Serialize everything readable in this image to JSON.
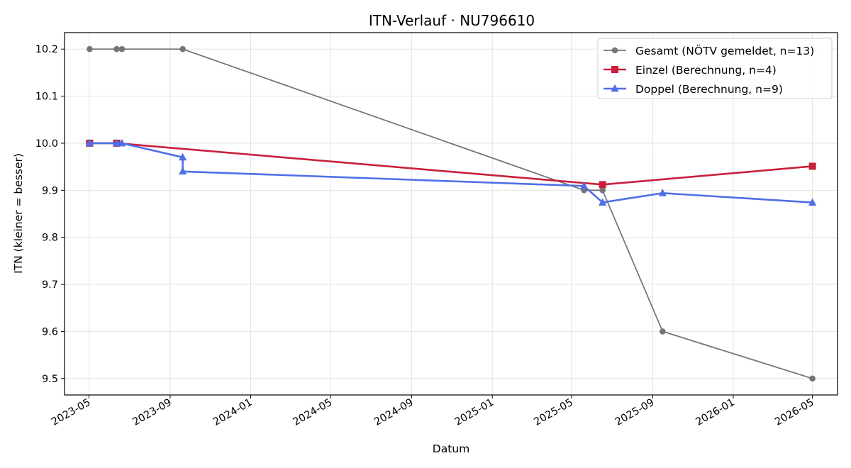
{
  "chart_data": {
    "type": "line",
    "title": "ITN-Verlauf · NU796610",
    "xlabel": "Datum",
    "ylabel": "ITN  (kleiner = besser)",
    "xlim": [
      "2023-03-25",
      "2026-06-08"
    ],
    "ylim": [
      9.465,
      10.235
    ],
    "x_ticks": [
      "2023-05",
      "2023-09",
      "2024-01",
      "2024-05",
      "2024-09",
      "2025-01",
      "2025-05",
      "2025-09",
      "2026-01",
      "2026-05"
    ],
    "y_ticks": [
      "9.5",
      "9.6",
      "9.7",
      "9.8",
      "9.9",
      "10.0",
      "10.1",
      "10.2"
    ],
    "grid": true,
    "legend_position": "top-right",
    "series": [
      {
        "name": "Gesamt (NÖTV gemeldet, n=13)",
        "color": "#444444",
        "marker": "circle",
        "points": [
          {
            "x": "2023-05-02",
            "y": 10.2
          },
          {
            "x": "2023-06-12",
            "y": 10.2
          },
          {
            "x": "2023-06-20",
            "y": 10.2
          },
          {
            "x": "2023-09-20",
            "y": 10.2
          },
          {
            "x": "2025-05-20",
            "y": 9.9
          },
          {
            "x": "2025-06-17",
            "y": 9.9
          },
          {
            "x": "2025-09-16",
            "y": 9.6
          },
          {
            "x": "2026-05-01",
            "y": 9.5
          }
        ]
      },
      {
        "name": "Einzel (Berechnung, n=4)",
        "color": "#c8203c",
        "marker": "square",
        "points": [
          {
            "x": "2023-05-02",
            "y": 10.0
          },
          {
            "x": "2023-06-12",
            "y": 10.0
          },
          {
            "x": "2025-06-17",
            "y": 9.912
          },
          {
            "x": "2026-05-01",
            "y": 9.951
          }
        ]
      },
      {
        "name": "Doppel (Berechnung, n=9)",
        "color": "#4f6fe8",
        "marker": "triangle",
        "points": [
          {
            "x": "2023-05-02",
            "y": 10.0
          },
          {
            "x": "2023-06-12",
            "y": 10.0
          },
          {
            "x": "2023-06-20",
            "y": 10.0
          },
          {
            "x": "2023-09-20",
            "y": 9.97
          },
          {
            "x": "2023-09-20",
            "y": 9.94
          },
          {
            "x": "2025-05-20",
            "y": 9.909
          },
          {
            "x": "2025-06-17",
            "y": 9.874
          },
          {
            "x": "2025-09-16",
            "y": 9.894
          },
          {
            "x": "2026-05-01",
            "y": 9.874
          }
        ]
      }
    ]
  }
}
